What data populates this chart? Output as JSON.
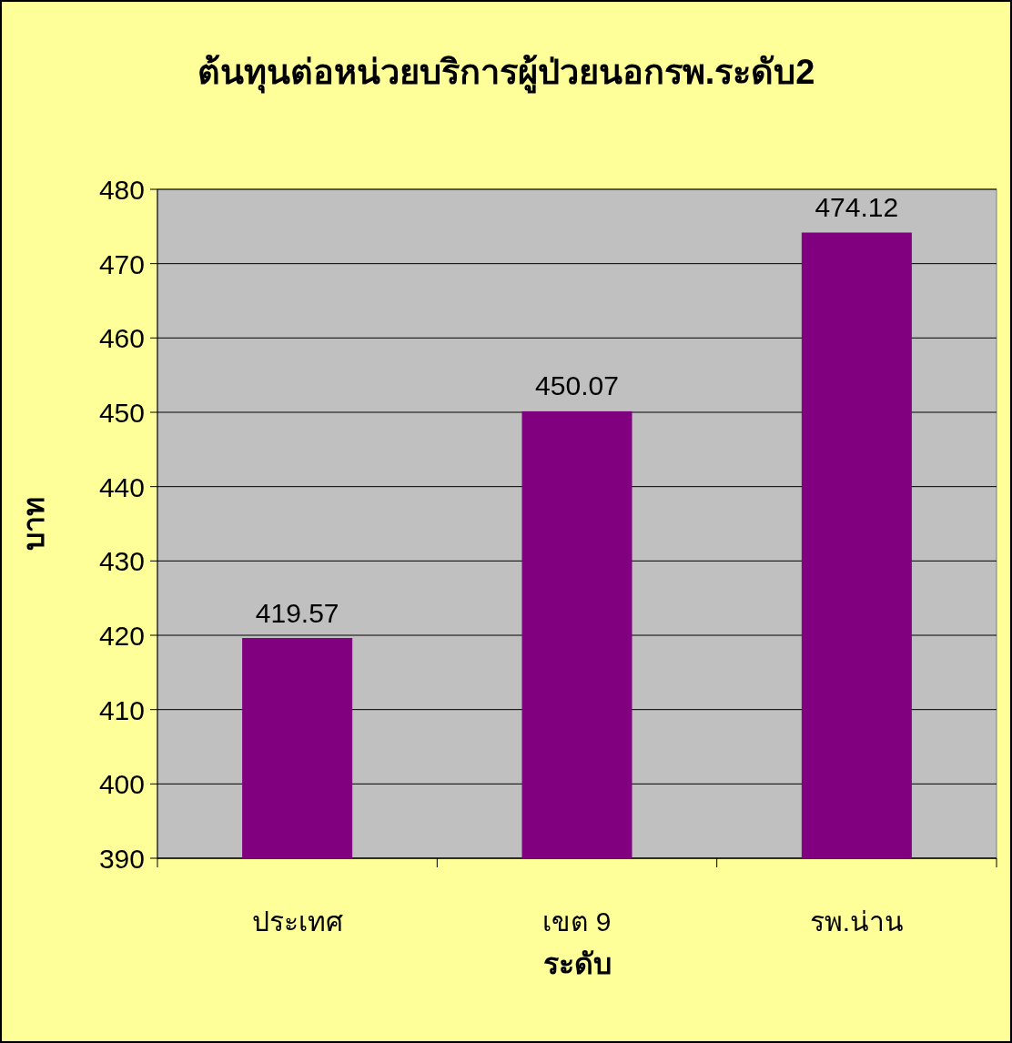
{
  "chart_data": {
    "type": "bar",
    "title": "ต้นทุนต่อหน่วยบริการผู้ป่วยนอกรพ.ระดับ2",
    "xlabel": "ระดับ",
    "ylabel": "บาท",
    "categories": [
      "ประเทศ",
      "เขต 9",
      "รพ.น่าน"
    ],
    "values": [
      419.57,
      450.07,
      474.12
    ],
    "color": "#800080",
    "ylim": [
      390,
      480
    ],
    "yticks": [
      390,
      400,
      410,
      420,
      430,
      440,
      450,
      460,
      470,
      480
    ],
    "grid": "y",
    "data_labels": true
  }
}
